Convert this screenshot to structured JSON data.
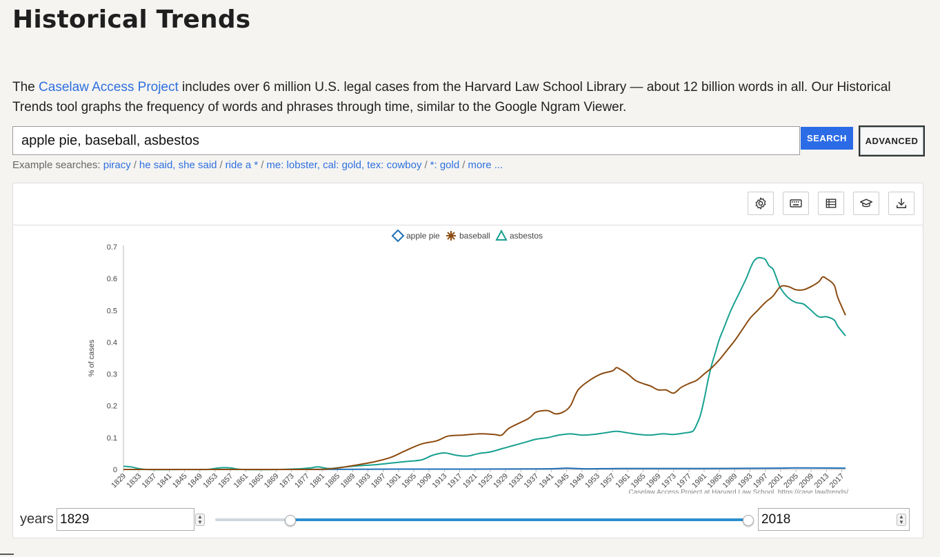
{
  "header": {
    "title": "Historical Trends"
  },
  "intro": {
    "prefix": "The ",
    "link_text": "Caselaw Access Project",
    "suffix": " includes over 6 million U.S. legal cases from the Harvard Law School Library — about 12 billion words in all. Our Historical Trends tool graphs the frequency of words and phrases through time, similar to the Google Ngram Viewer."
  },
  "search": {
    "value": "apple pie, baseball, asbestos",
    "search_label": "SEARCH",
    "advanced_label": "ADVANCED"
  },
  "examples": {
    "label": "Example searches:",
    "items": [
      "piracy",
      "he said, she said",
      "ride a *",
      "me: lobster, cal: gold, tex: cowboy",
      "*: gold",
      "more ..."
    ]
  },
  "toolbar": {
    "icons": [
      "gear-icon",
      "keyboard-icon",
      "table-icon",
      "graduation-cap-icon",
      "download-icon"
    ]
  },
  "colors": {
    "apple pie": "#1f6fb5",
    "baseball": "#8b4a0f",
    "asbestos": "#17a091",
    "accent": "#2b6be6"
  },
  "years": {
    "label": "years",
    "start": "1829",
    "end": "2018",
    "slider_start_fraction": 0.14,
    "slider_end_fraction": 1.0
  },
  "chart_data": {
    "type": "line",
    "ylabel": "% of cases",
    "xlabel": "",
    "credit": "Caselaw Access Project at Harvard Law School. https://case.law/trends/",
    "xlim": [
      1829,
      2018
    ],
    "ylim": [
      0,
      0.7
    ],
    "yticks": [
      0,
      0.1,
      0.2,
      0.3,
      0.4,
      0.5,
      0.6,
      0.7
    ],
    "xticks": [
      1829,
      1833,
      1837,
      1841,
      1845,
      1849,
      1853,
      1857,
      1861,
      1865,
      1869,
      1873,
      1877,
      1881,
      1885,
      1889,
      1893,
      1897,
      1901,
      1905,
      1909,
      1913,
      1917,
      1921,
      1925,
      1929,
      1933,
      1937,
      1941,
      1945,
      1949,
      1953,
      1957,
      1961,
      1965,
      1969,
      1973,
      1977,
      1981,
      1985,
      1989,
      1993,
      1997,
      2001,
      2005,
      2009,
      2013,
      2017
    ],
    "legend_position": "top-center",
    "series": [
      {
        "name": "apple pie",
        "marker": "diamond",
        "x": [
          1829,
          1875,
          1900,
          1920,
          1940,
          1945,
          1950,
          1960,
          1980,
          2000,
          2005,
          2018
        ],
        "y": [
          0,
          0,
          0.001,
          0.001,
          0.002,
          0.004,
          0.002,
          0.003,
          0.003,
          0.004,
          0.005,
          0.004
        ]
      },
      {
        "name": "baseball",
        "marker": "asterisk",
        "x": [
          1829,
          1875,
          1883,
          1887,
          1891,
          1895,
          1899,
          1903,
          1907,
          1911,
          1914,
          1918,
          1922,
          1926,
          1928,
          1930,
          1935,
          1937,
          1940,
          1942,
          1944,
          1946,
          1948,
          1951,
          1954,
          1957,
          1958,
          1959,
          1961,
          1963,
          1965,
          1967,
          1969,
          1971,
          1973,
          1975,
          1977,
          1979,
          1981,
          1983,
          1985,
          1987,
          1989,
          1991,
          1993,
          1995,
          1997,
          1999,
          2001,
          2003,
          2005,
          2007,
          2009,
          2011,
          2012,
          2013,
          2015,
          2016,
          2018
        ],
        "y": [
          0,
          0,
          0.002,
          0.008,
          0.016,
          0.025,
          0.038,
          0.06,
          0.08,
          0.09,
          0.105,
          0.108,
          0.112,
          0.11,
          0.108,
          0.13,
          0.16,
          0.18,
          0.185,
          0.175,
          0.18,
          0.2,
          0.25,
          0.28,
          0.3,
          0.31,
          0.32,
          0.315,
          0.3,
          0.28,
          0.27,
          0.262,
          0.25,
          0.25,
          0.24,
          0.258,
          0.27,
          0.28,
          0.3,
          0.32,
          0.345,
          0.375,
          0.405,
          0.44,
          0.475,
          0.5,
          0.525,
          0.545,
          0.575,
          0.575,
          0.565,
          0.565,
          0.575,
          0.59,
          0.605,
          0.6,
          0.58,
          0.54,
          0.485
        ]
      },
      {
        "name": "asbestos",
        "marker": "triangle",
        "x": [
          1829,
          1831,
          1835,
          1845,
          1851,
          1854,
          1857,
          1860,
          1870,
          1875,
          1878,
          1880,
          1883,
          1887,
          1891,
          1895,
          1899,
          1903,
          1907,
          1910,
          1913,
          1916,
          1919,
          1922,
          1925,
          1928,
          1931,
          1934,
          1937,
          1940,
          1943,
          1946,
          1949,
          1952,
          1955,
          1958,
          1961,
          1964,
          1967,
          1970,
          1973,
          1976,
          1978,
          1979,
          1980,
          1981,
          1982,
          1983,
          1984,
          1985,
          1986,
          1988,
          1990,
          1992,
          1993,
          1994,
          1995,
          1996,
          1997,
          1998,
          1999,
          2000,
          2001,
          2003,
          2005,
          2007,
          2009,
          2011,
          2013,
          2015,
          2016,
          2018
        ],
        "y": [
          0.01,
          0.008,
          0,
          0,
          0,
          0.005,
          0.005,
          0,
          0,
          0.002,
          0.005,
          0.008,
          0.003,
          0.008,
          0.012,
          0.015,
          0.02,
          0.025,
          0.03,
          0.045,
          0.052,
          0.045,
          0.042,
          0.05,
          0.055,
          0.065,
          0.075,
          0.085,
          0.095,
          0.1,
          0.108,
          0.112,
          0.108,
          0.11,
          0.115,
          0.12,
          0.115,
          0.11,
          0.108,
          0.112,
          0.11,
          0.115,
          0.12,
          0.14,
          0.17,
          0.22,
          0.28,
          0.33,
          0.37,
          0.41,
          0.44,
          0.5,
          0.55,
          0.6,
          0.63,
          0.655,
          0.665,
          0.665,
          0.66,
          0.64,
          0.63,
          0.6,
          0.57,
          0.54,
          0.525,
          0.52,
          0.5,
          0.48,
          0.48,
          0.47,
          0.45,
          0.42
        ]
      }
    ]
  }
}
